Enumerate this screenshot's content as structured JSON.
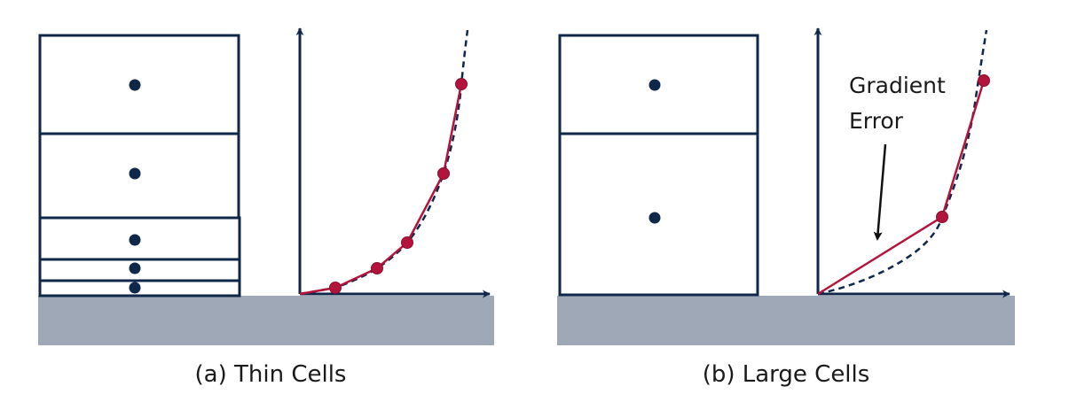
{
  "colors": {
    "navy": "#0f2748",
    "crimson": "#b3143b",
    "ground": "#9ea8b7"
  },
  "panels": [
    {
      "id": "a",
      "caption": "(a) Thin Cells",
      "cell_count": 5,
      "sample_count": 5
    },
    {
      "id": "b",
      "caption": "(b) Large Cells",
      "cell_count": 2,
      "sample_count": 2,
      "annotation": [
        "Gradient",
        "Error"
      ]
    }
  ]
}
